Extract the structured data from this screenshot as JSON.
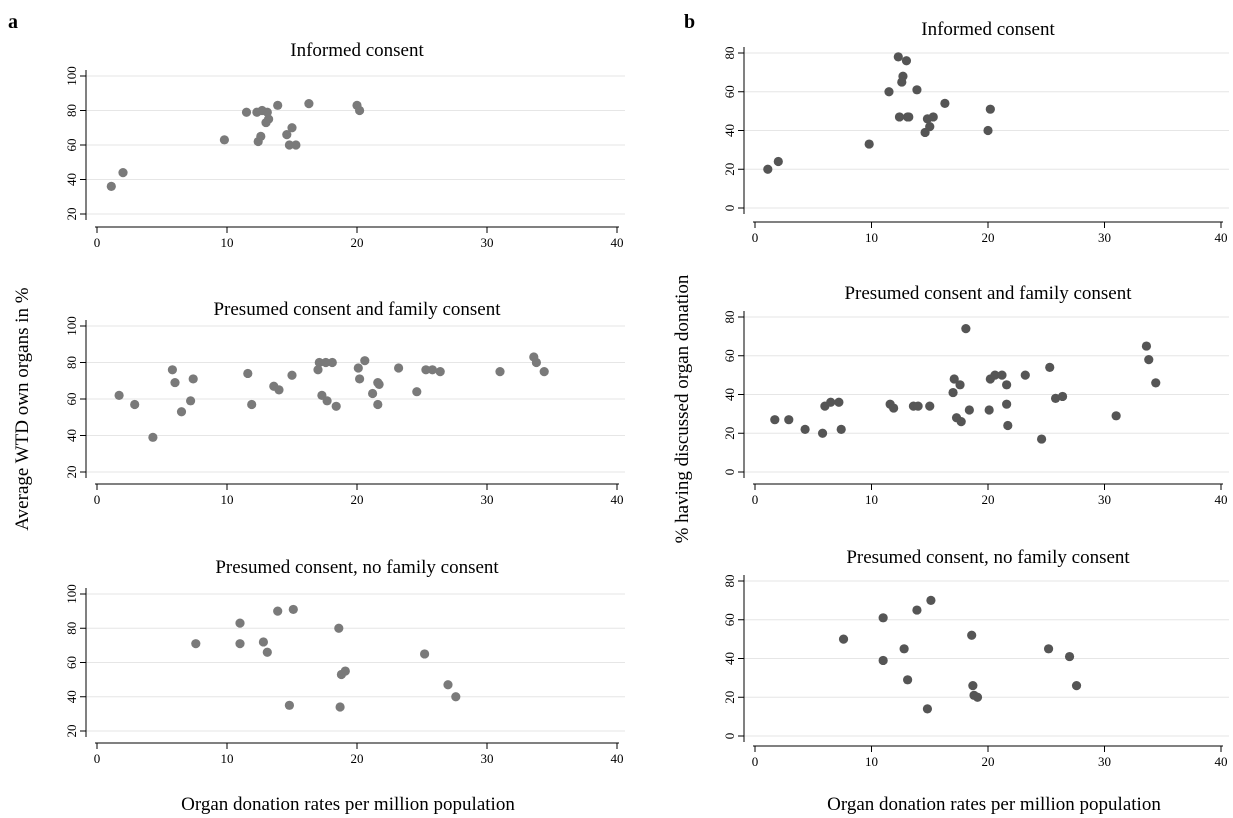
{
  "figure": {
    "panel_a_letter": "a",
    "panel_b_letter": "b",
    "a_ylabel": "Average WTD own organs in %",
    "b_ylabel": "% having discussed organ donation",
    "a_xlabel": "Organ donation rates per million population",
    "b_xlabel": "Organ donation rates per million population"
  },
  "colors": {
    "marker_a": "#7a7a7a",
    "marker_b": "#555555",
    "grid": "#e6e6e6",
    "axis": "#000000"
  },
  "chart_data": [
    {
      "panel": "a",
      "type": "scatter",
      "title": "Informed consent",
      "xlim": [
        0,
        40
      ],
      "ylim": [
        20,
        100
      ],
      "xticks": [
        "0",
        "10",
        "20",
        "30",
        "40"
      ],
      "yticks": [
        "20",
        "40",
        "60",
        "80",
        "100"
      ],
      "grid": true,
      "points": [
        [
          1.1,
          36
        ],
        [
          2,
          44
        ],
        [
          9.8,
          63
        ],
        [
          11.5,
          79
        ],
        [
          12.3,
          79
        ],
        [
          12.4,
          62
        ],
        [
          12.6,
          65
        ],
        [
          12.7,
          80
        ],
        [
          13,
          73
        ],
        [
          13.1,
          79
        ],
        [
          13.2,
          75
        ],
        [
          13.9,
          83
        ],
        [
          14.6,
          66
        ],
        [
          14.8,
          60
        ],
        [
          15,
          70
        ],
        [
          15.3,
          60
        ],
        [
          16.3,
          84
        ],
        [
          20,
          83
        ],
        [
          20.2,
          80
        ]
      ]
    },
    {
      "panel": "a",
      "type": "scatter",
      "title": "Presumed consent and family consent",
      "xlim": [
        0,
        40
      ],
      "ylim": [
        20,
        100
      ],
      "xticks": [
        "0",
        "10",
        "20",
        "30",
        "40"
      ],
      "yticks": [
        "20",
        "40",
        "60",
        "80",
        "100"
      ],
      "grid": true,
      "points": [
        [
          1.7,
          62
        ],
        [
          2.9,
          57
        ],
        [
          4.3,
          39
        ],
        [
          5.8,
          76
        ],
        [
          6,
          69
        ],
        [
          6.5,
          53
        ],
        [
          7.2,
          59
        ],
        [
          7.4,
          71
        ],
        [
          11.6,
          74
        ],
        [
          11.9,
          57
        ],
        [
          13.6,
          67
        ],
        [
          14,
          65
        ],
        [
          15,
          73
        ],
        [
          17,
          76
        ],
        [
          17.1,
          80
        ],
        [
          17.3,
          62
        ],
        [
          17.6,
          80
        ],
        [
          17.7,
          59
        ],
        [
          18.1,
          80
        ],
        [
          18.4,
          56
        ],
        [
          20.1,
          77
        ],
        [
          20.2,
          71
        ],
        [
          20.6,
          81
        ],
        [
          21.2,
          63
        ],
        [
          21.6,
          69
        ],
        [
          21.6,
          57
        ],
        [
          21.7,
          68
        ],
        [
          23.2,
          77
        ],
        [
          24.6,
          64
        ],
        [
          25.3,
          76
        ],
        [
          25.8,
          76
        ],
        [
          26.4,
          75
        ],
        [
          31,
          75
        ],
        [
          33.6,
          83
        ],
        [
          33.8,
          80
        ],
        [
          34.4,
          75
        ]
      ]
    },
    {
      "panel": "a",
      "type": "scatter",
      "title": "Presumed consent, no family consent",
      "xlim": [
        0,
        40
      ],
      "ylim": [
        20,
        100
      ],
      "xticks": [
        "0",
        "10",
        "20",
        "30",
        "40"
      ],
      "yticks": [
        "20",
        "40",
        "60",
        "80",
        "100"
      ],
      "grid": true,
      "points": [
        [
          7.6,
          71
        ],
        [
          11,
          83
        ],
        [
          11,
          71
        ],
        [
          12.8,
          72
        ],
        [
          13.1,
          66
        ],
        [
          13.9,
          90
        ],
        [
          14.8,
          35
        ],
        [
          15.1,
          91
        ],
        [
          18.6,
          80
        ],
        [
          18.7,
          34
        ],
        [
          18.8,
          53
        ],
        [
          19.1,
          55
        ],
        [
          25.2,
          65
        ],
        [
          27,
          47
        ],
        [
          27.6,
          40
        ]
      ]
    },
    {
      "panel": "b",
      "type": "scatter",
      "title": "Informed consent",
      "xlim": [
        0,
        40
      ],
      "ylim": [
        0,
        80
      ],
      "xticks": [
        "0",
        "10",
        "20",
        "30",
        "40"
      ],
      "yticks": [
        "0",
        "20",
        "40",
        "60",
        "80"
      ],
      "grid": true,
      "points": [
        [
          1.1,
          20
        ],
        [
          2,
          24
        ],
        [
          9.8,
          33
        ],
        [
          11.5,
          60
        ],
        [
          12.3,
          78
        ],
        [
          12.4,
          47
        ],
        [
          12.6,
          65
        ],
        [
          12.7,
          68
        ],
        [
          13,
          76
        ],
        [
          13.1,
          47
        ],
        [
          13.2,
          47
        ],
        [
          13.9,
          61
        ],
        [
          14.6,
          39
        ],
        [
          14.8,
          46
        ],
        [
          15,
          42
        ],
        [
          15.3,
          47
        ],
        [
          16.3,
          54
        ],
        [
          20,
          40
        ],
        [
          20.2,
          51
        ]
      ]
    },
    {
      "panel": "b",
      "type": "scatter",
      "title": "Presumed consent and family consent",
      "xlim": [
        0,
        40
      ],
      "ylim": [
        0,
        80
      ],
      "xticks": [
        "0",
        "10",
        "20",
        "30",
        "40"
      ],
      "yticks": [
        "0",
        "20",
        "40",
        "60",
        "80"
      ],
      "grid": true,
      "points": [
        [
          1.7,
          27
        ],
        [
          2.9,
          27
        ],
        [
          4.3,
          22
        ],
        [
          5.8,
          20
        ],
        [
          6,
          34
        ],
        [
          6.5,
          36
        ],
        [
          7.2,
          36
        ],
        [
          7.4,
          22
        ],
        [
          11.6,
          35
        ],
        [
          11.9,
          33
        ],
        [
          13.6,
          34
        ],
        [
          14,
          34
        ],
        [
          15,
          34
        ],
        [
          17,
          41
        ],
        [
          17.1,
          48
        ],
        [
          17.3,
          28
        ],
        [
          17.6,
          45
        ],
        [
          17.7,
          26
        ],
        [
          18.1,
          74
        ],
        [
          18.4,
          32
        ],
        [
          20.1,
          32
        ],
        [
          20.2,
          48
        ],
        [
          20.6,
          50
        ],
        [
          21.2,
          50
        ],
        [
          21.6,
          45
        ],
        [
          21.6,
          35
        ],
        [
          21.7,
          24
        ],
        [
          23.2,
          50
        ],
        [
          24.6,
          17
        ],
        [
          25.3,
          54
        ],
        [
          25.8,
          38
        ],
        [
          26.4,
          39
        ],
        [
          31,
          29
        ],
        [
          33.6,
          65
        ],
        [
          33.8,
          58
        ],
        [
          34.4,
          46
        ]
      ]
    },
    {
      "panel": "b",
      "type": "scatter",
      "title": "Presumed consent, no family consent",
      "xlim": [
        0,
        40
      ],
      "ylim": [
        0,
        80
      ],
      "xticks": [
        "0",
        "10",
        "20",
        "30",
        "40"
      ],
      "yticks": [
        "0",
        "20",
        "40",
        "60",
        "80"
      ],
      "grid": true,
      "points": [
        [
          7.6,
          50
        ],
        [
          11,
          61
        ],
        [
          11,
          39
        ],
        [
          12.8,
          45
        ],
        [
          13.1,
          29
        ],
        [
          13.9,
          65
        ],
        [
          14.8,
          14
        ],
        [
          15.1,
          70
        ],
        [
          18.6,
          52
        ],
        [
          18.7,
          26
        ],
        [
          18.8,
          21
        ],
        [
          19.1,
          20
        ],
        [
          25.2,
          45
        ],
        [
          27,
          41
        ],
        [
          27.6,
          26
        ]
      ]
    }
  ]
}
